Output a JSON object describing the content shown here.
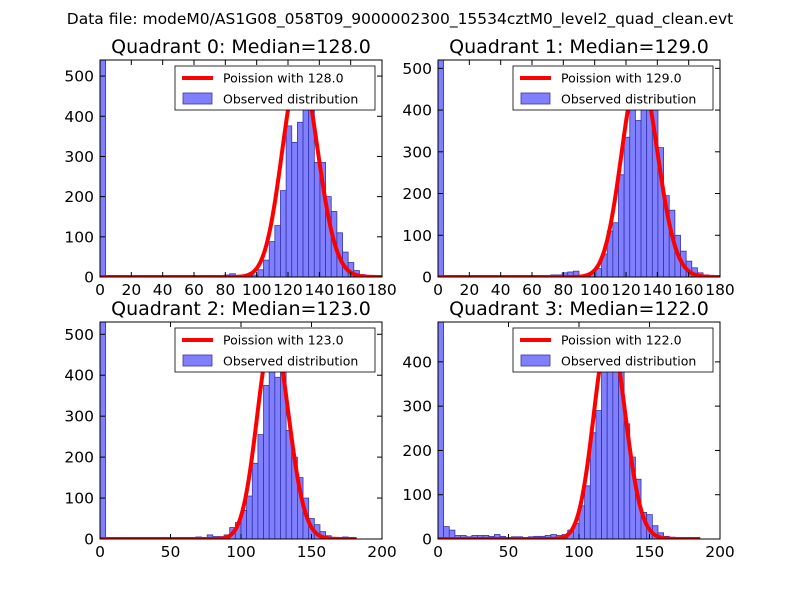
{
  "suptitle": "Data file: modeM0/AS1G08_058T09_9000002300_15534cztM0_level2_quad_clean.evt",
  "colors": {
    "bar_fill": "#8080ff",
    "bar_edge": "#3434a8",
    "curve": "#ff0000",
    "axis": "#000000"
  },
  "chart_data": [
    {
      "type": "bar",
      "title": "Quadrant 0: Median=128.0",
      "xlim": [
        0,
        180
      ],
      "ylim": [
        0,
        540
      ],
      "xticks": [
        "0",
        "20",
        "40",
        "60",
        "80",
        "100",
        "120",
        "140",
        "160",
        "180"
      ],
      "xtick_values": [
        0,
        20,
        40,
        60,
        80,
        100,
        120,
        140,
        160,
        180
      ],
      "yticks": [
        "0",
        "100",
        "200",
        "300",
        "400",
        "500"
      ],
      "ytick_values": [
        0,
        100,
        200,
        300,
        400,
        500
      ],
      "legend": {
        "curve_label": "Poission with 128.0",
        "bar_label": "Observed distribution"
      },
      "bin_width": 3.6,
      "bins": [
        {
          "x": 0,
          "v": 540
        },
        {
          "x": 79.2,
          "v": 5
        },
        {
          "x": 82.8,
          "v": 8
        },
        {
          "x": 86.4,
          "v": 2
        },
        {
          "x": 90,
          "v": 2
        },
        {
          "x": 93.6,
          "v": 3
        },
        {
          "x": 97.2,
          "v": 5
        },
        {
          "x": 100.8,
          "v": 18
        },
        {
          "x": 104.4,
          "v": 42
        },
        {
          "x": 108,
          "v": 88
        },
        {
          "x": 111.6,
          "v": 128
        },
        {
          "x": 115.2,
          "v": 215
        },
        {
          "x": 118.8,
          "v": 376
        },
        {
          "x": 122.4,
          "v": 335
        },
        {
          "x": 126,
          "v": 385
        },
        {
          "x": 129.6,
          "v": 510
        },
        {
          "x": 133.2,
          "v": 440
        },
        {
          "x": 136.8,
          "v": 285
        },
        {
          "x": 140.4,
          "v": 285
        },
        {
          "x": 144,
          "v": 200
        },
        {
          "x": 147.6,
          "v": 163
        },
        {
          "x": 151.2,
          "v": 110
        },
        {
          "x": 154.8,
          "v": 62
        },
        {
          "x": 158.4,
          "v": 36
        },
        {
          "x": 162,
          "v": 16
        },
        {
          "x": 165.6,
          "v": 6
        }
      ],
      "poisson_mean": 128.0,
      "peak": 520,
      "curve_x": [
        0,
        180
      ]
    },
    {
      "type": "bar",
      "title": "Quadrant 1: Median=129.0",
      "xlim": [
        0,
        180
      ],
      "ylim": [
        0,
        520
      ],
      "xticks": [
        "0",
        "20",
        "40",
        "60",
        "80",
        "100",
        "120",
        "140",
        "160",
        "180"
      ],
      "xtick_values": [
        0,
        20,
        40,
        60,
        80,
        100,
        120,
        140,
        160,
        180
      ],
      "yticks": [
        "0",
        "100",
        "200",
        "300",
        "400",
        "500"
      ],
      "ytick_values": [
        0,
        100,
        200,
        300,
        400,
        500
      ],
      "legend": {
        "curve_label": "Poission with 129.0",
        "bar_label": "Observed distribution"
      },
      "bin_width": 3.6,
      "bins": [
        {
          "x": 0,
          "v": 520
        },
        {
          "x": 72,
          "v": 5
        },
        {
          "x": 75.6,
          "v": 5
        },
        {
          "x": 79.2,
          "v": 10
        },
        {
          "x": 82.8,
          "v": 12
        },
        {
          "x": 86.4,
          "v": 14
        },
        {
          "x": 90,
          "v": 2
        },
        {
          "x": 93.6,
          "v": 2
        },
        {
          "x": 97.2,
          "v": 8
        },
        {
          "x": 100.8,
          "v": 20
        },
        {
          "x": 104.4,
          "v": 55
        },
        {
          "x": 108,
          "v": 110
        },
        {
          "x": 111.6,
          "v": 130
        },
        {
          "x": 115.2,
          "v": 245
        },
        {
          "x": 118.8,
          "v": 335
        },
        {
          "x": 122.4,
          "v": 445
        },
        {
          "x": 126,
          "v": 375
        },
        {
          "x": 129.6,
          "v": 490
        },
        {
          "x": 133.2,
          "v": 420
        },
        {
          "x": 136.8,
          "v": 400
        },
        {
          "x": 140.4,
          "v": 310
        },
        {
          "x": 144,
          "v": 195
        },
        {
          "x": 147.6,
          "v": 160
        },
        {
          "x": 151.2,
          "v": 100
        },
        {
          "x": 154.8,
          "v": 62
        },
        {
          "x": 158.4,
          "v": 38
        },
        {
          "x": 162,
          "v": 22
        },
        {
          "x": 165.6,
          "v": 10
        },
        {
          "x": 169.2,
          "v": 5
        }
      ],
      "poisson_mean": 129.0,
      "peak": 495,
      "curve_x": [
        0,
        180
      ]
    },
    {
      "type": "bar",
      "title": "Quadrant 2: Median=123.0",
      "xlim": [
        0,
        200
      ],
      "ylim": [
        0,
        530
      ],
      "xticks": [
        "0",
        "50",
        "100",
        "150",
        "200"
      ],
      "xtick_values": [
        0,
        50,
        100,
        150,
        200
      ],
      "yticks": [
        "0",
        "100",
        "200",
        "300",
        "400",
        "500"
      ],
      "ytick_values": [
        0,
        100,
        200,
        300,
        400,
        500
      ],
      "legend": {
        "curve_label": "Poission with 123.0",
        "bar_label": "Observed distribution"
      },
      "bin_width": 4,
      "bins": [
        {
          "x": 0,
          "v": 530
        },
        {
          "x": 68,
          "v": 5
        },
        {
          "x": 76,
          "v": 10
        },
        {
          "x": 80,
          "v": 6
        },
        {
          "x": 84,
          "v": 6
        },
        {
          "x": 88,
          "v": 10
        },
        {
          "x": 92,
          "v": 28
        },
        {
          "x": 96,
          "v": 40
        },
        {
          "x": 100,
          "v": 70
        },
        {
          "x": 104,
          "v": 105
        },
        {
          "x": 108,
          "v": 185
        },
        {
          "x": 112,
          "v": 255
        },
        {
          "x": 116,
          "v": 375
        },
        {
          "x": 120,
          "v": 410
        },
        {
          "x": 124,
          "v": 395
        },
        {
          "x": 128,
          "v": 420
        },
        {
          "x": 132,
          "v": 265
        },
        {
          "x": 136,
          "v": 200
        },
        {
          "x": 140,
          "v": 150
        },
        {
          "x": 144,
          "v": 100
        },
        {
          "x": 148,
          "v": 50
        },
        {
          "x": 152,
          "v": 35
        },
        {
          "x": 156,
          "v": 18
        },
        {
          "x": 160,
          "v": 8
        },
        {
          "x": 164,
          "v": 4
        },
        {
          "x": 172,
          "v": 5
        },
        {
          "x": 176,
          "v": 3
        }
      ],
      "poisson_mean": 123.0,
      "peak": 500,
      "curve_x": [
        0,
        182
      ]
    },
    {
      "type": "bar",
      "title": "Quadrant 3: Median=122.0",
      "xlim": [
        0,
        200
      ],
      "ylim": [
        0,
        490
      ],
      "xticks": [
        "0",
        "50",
        "100",
        "150",
        "200"
      ],
      "xtick_values": [
        0,
        50,
        100,
        150,
        200
      ],
      "yticks": [
        "0",
        "100",
        "200",
        "300",
        "400"
      ],
      "ytick_values": [
        0,
        100,
        200,
        300,
        400
      ],
      "legend": {
        "curve_label": "Poission with 122.0",
        "bar_label": "Observed distribution"
      },
      "bin_width": 4,
      "bins": [
        {
          "x": 0,
          "v": 490
        },
        {
          "x": 4,
          "v": 28
        },
        {
          "x": 8,
          "v": 20
        },
        {
          "x": 12,
          "v": 8
        },
        {
          "x": 16,
          "v": 8
        },
        {
          "x": 20,
          "v": 5
        },
        {
          "x": 24,
          "v": 8
        },
        {
          "x": 28,
          "v": 8
        },
        {
          "x": 32,
          "v": 8
        },
        {
          "x": 36,
          "v": 6
        },
        {
          "x": 40,
          "v": 10
        },
        {
          "x": 44,
          "v": 6
        },
        {
          "x": 52,
          "v": 5
        },
        {
          "x": 56,
          "v": 5
        },
        {
          "x": 64,
          "v": 5
        },
        {
          "x": 68,
          "v": 6
        },
        {
          "x": 72,
          "v": 6
        },
        {
          "x": 76,
          "v": 8
        },
        {
          "x": 80,
          "v": 10
        },
        {
          "x": 84,
          "v": 8
        },
        {
          "x": 88,
          "v": 10
        },
        {
          "x": 92,
          "v": 20
        },
        {
          "x": 96,
          "v": 35
        },
        {
          "x": 100,
          "v": 75
        },
        {
          "x": 104,
          "v": 120
        },
        {
          "x": 108,
          "v": 240
        },
        {
          "x": 112,
          "v": 290
        },
        {
          "x": 116,
          "v": 430
        },
        {
          "x": 120,
          "v": 385
        },
        {
          "x": 124,
          "v": 415
        },
        {
          "x": 128,
          "v": 400
        },
        {
          "x": 132,
          "v": 260
        },
        {
          "x": 136,
          "v": 185
        },
        {
          "x": 140,
          "v": 135
        },
        {
          "x": 144,
          "v": 60
        },
        {
          "x": 148,
          "v": 55
        },
        {
          "x": 152,
          "v": 30
        },
        {
          "x": 156,
          "v": 14
        },
        {
          "x": 160,
          "v": 6
        },
        {
          "x": 164,
          "v": 4
        },
        {
          "x": 172,
          "v": 3
        }
      ],
      "poisson_mean": 122.0,
      "peak": 470,
      "curve_x": [
        0,
        186
      ]
    }
  ]
}
